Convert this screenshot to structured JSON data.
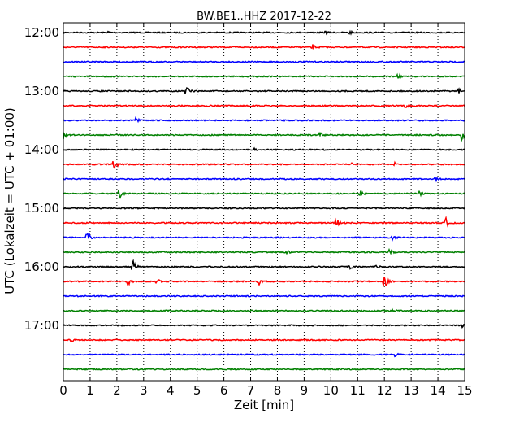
{
  "chart_data": {
    "type": "line",
    "title": "BW.BE1..HHZ 2017-12-22",
    "xlabel": "Zeit  [min]",
    "ylabel": "UTC (Lokalzeit = UTC + 01:00)",
    "xlim": [
      0,
      15
    ],
    "x_ticks": [
      0,
      1,
      2,
      3,
      4,
      5,
      6,
      7,
      8,
      9,
      10,
      11,
      12,
      13,
      14,
      15
    ],
    "x_tick_labels": [
      "0",
      "1",
      "2",
      "3",
      "4",
      "5",
      "6",
      "7",
      "8",
      "9",
      "10",
      "11",
      "12",
      "13",
      "14",
      "15"
    ],
    "grid": "vertical dotted",
    "rows_per_hour": 4,
    "y_tick_labels": [
      "12:00",
      "13:00",
      "14:00",
      "15:00",
      "16:00",
      "17:00"
    ],
    "color_cycle": [
      "#000000",
      "#ff0000",
      "#0000ff",
      "#008000"
    ],
    "series": [
      {
        "start": "12:00",
        "events": [
          {
            "t": 1.7,
            "a": 2
          },
          {
            "t": 9.8,
            "a": 2
          },
          {
            "t": 10.7,
            "a": 2
          }
        ]
      },
      {
        "start": "12:15",
        "events": [
          {
            "t": 9.3,
            "a": 4
          }
        ]
      },
      {
        "start": "12:30",
        "events": []
      },
      {
        "start": "12:45",
        "events": [
          {
            "t": 12.5,
            "a": 3
          }
        ]
      },
      {
        "start": "13:00",
        "events": [
          {
            "t": 4.6,
            "a": 7
          },
          {
            "t": 14.8,
            "a": 3
          }
        ]
      },
      {
        "start": "13:15",
        "events": [
          {
            "t": 12.8,
            "a": 3
          }
        ]
      },
      {
        "start": "13:30",
        "events": [
          {
            "t": 2.7,
            "a": 3
          }
        ]
      },
      {
        "start": "13:45",
        "events": [
          {
            "t": 0.0,
            "a": 5
          },
          {
            "t": 9.6,
            "a": 3
          },
          {
            "t": 14.9,
            "a": 8
          }
        ]
      },
      {
        "start": "14:00",
        "events": [
          {
            "t": 7.1,
            "a": 2
          }
        ]
      },
      {
        "start": "14:15",
        "events": [
          {
            "t": 1.9,
            "a": 6
          },
          {
            "t": 10.8,
            "a": 2
          },
          {
            "t": 12.4,
            "a": 2
          }
        ]
      },
      {
        "start": "14:30",
        "events": [
          {
            "t": 13.9,
            "a": 2
          }
        ]
      },
      {
        "start": "14:45",
        "events": [
          {
            "t": 2.1,
            "a": 6
          },
          {
            "t": 11.1,
            "a": 4
          },
          {
            "t": 13.3,
            "a": 4
          }
        ]
      },
      {
        "start": "15:00",
        "events": []
      },
      {
        "start": "15:15",
        "events": [
          {
            "t": 10.2,
            "a": 6
          },
          {
            "t": 14.3,
            "a": 6
          }
        ]
      },
      {
        "start": "15:30",
        "events": [
          {
            "t": 0.9,
            "a": 9
          },
          {
            "t": 12.3,
            "a": 3
          }
        ]
      },
      {
        "start": "15:45",
        "events": [
          {
            "t": 8.4,
            "a": 2
          },
          {
            "t": 12.2,
            "a": 4
          }
        ]
      },
      {
        "start": "16:00",
        "events": [
          {
            "t": 2.6,
            "a": 9
          },
          {
            "t": 10.7,
            "a": 3
          },
          {
            "t": 11.7,
            "a": 2
          }
        ]
      },
      {
        "start": "16:15",
        "events": [
          {
            "t": 2.4,
            "a": 9
          },
          {
            "t": 3.5,
            "a": 4
          },
          {
            "t": 7.3,
            "a": 5
          },
          {
            "t": 12.0,
            "a": 9
          }
        ]
      },
      {
        "start": "16:30",
        "events": []
      },
      {
        "start": "16:45",
        "events": [
          {
            "t": 12.3,
            "a": 2
          }
        ]
      },
      {
        "start": "17:00",
        "events": [
          {
            "t": 14.9,
            "a": 3
          }
        ]
      },
      {
        "start": "17:15",
        "events": [
          {
            "t": 0.3,
            "a": 2
          }
        ]
      },
      {
        "start": "17:30",
        "events": [
          {
            "t": 12.4,
            "a": 4
          }
        ]
      },
      {
        "start": "17:45",
        "events": []
      }
    ]
  }
}
